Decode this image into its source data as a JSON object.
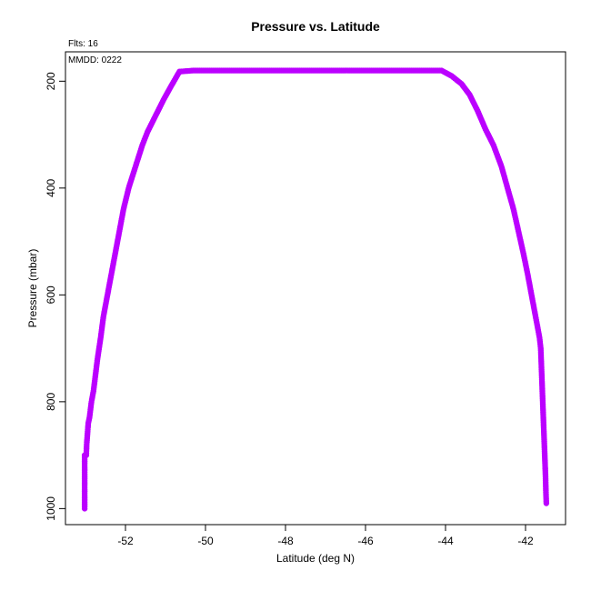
{
  "chart_data": {
    "type": "scatter",
    "title": "Pressure vs. Latitude",
    "xlabel": "Latitude (deg N)",
    "ylabel": "Pressure (mbar)",
    "xlim": [
      -53.5,
      -41.0
    ],
    "ylim": [
      1030,
      145
    ],
    "y_inverted": true,
    "grid": false,
    "x_ticks": [
      -52,
      -50,
      -48,
      -46,
      -44,
      -42
    ],
    "x_tick_labels": [
      "-52",
      "-50",
      "-48",
      "-46",
      "-44",
      "-42"
    ],
    "y_ticks": [
      200,
      400,
      600,
      800,
      1000
    ],
    "y_tick_labels": [
      "200",
      "400",
      "600",
      "800",
      "1000"
    ],
    "annotations": [
      "Flts: 16",
      "MMDD: 0222"
    ],
    "marker_color": "#bb00ff",
    "series": [
      {
        "points": [
          [
            -53.02,
            1000
          ],
          [
            -53.02,
            980
          ],
          [
            -53.02,
            960
          ],
          [
            -53.02,
            940
          ],
          [
            -53.02,
            920
          ],
          [
            -53.02,
            900
          ],
          [
            -52.98,
            900
          ],
          [
            -52.97,
            880
          ],
          [
            -52.95,
            860
          ],
          [
            -52.93,
            840
          ],
          [
            -52.9,
            830
          ],
          [
            -52.85,
            800
          ],
          [
            -52.8,
            780
          ],
          [
            -52.75,
            750
          ],
          [
            -52.7,
            720
          ],
          [
            -52.62,
            680
          ],
          [
            -52.55,
            640
          ],
          [
            -52.45,
            600
          ],
          [
            -52.35,
            560
          ],
          [
            -52.25,
            520
          ],
          [
            -52.15,
            480
          ],
          [
            -52.05,
            440
          ],
          [
            -51.92,
            400
          ],
          [
            -51.75,
            360
          ],
          [
            -51.58,
            320
          ],
          [
            -51.45,
            295
          ],
          [
            -51.25,
            265
          ],
          [
            -51.05,
            235
          ],
          [
            -50.85,
            208
          ],
          [
            -50.65,
            182
          ],
          [
            -50.3,
            180
          ],
          [
            -49.5,
            180
          ],
          [
            -48.5,
            180
          ],
          [
            -47.5,
            180
          ],
          [
            -46.5,
            180
          ],
          [
            -45.5,
            180
          ],
          [
            -44.5,
            180
          ],
          [
            -44.1,
            180
          ],
          [
            -43.85,
            190
          ],
          [
            -43.6,
            205
          ],
          [
            -43.4,
            225
          ],
          [
            -43.2,
            255
          ],
          [
            -43.0,
            290
          ],
          [
            -42.8,
            320
          ],
          [
            -42.6,
            360
          ],
          [
            -42.45,
            400
          ],
          [
            -42.3,
            440
          ],
          [
            -42.18,
            480
          ],
          [
            -42.06,
            520
          ],
          [
            -41.95,
            560
          ],
          [
            -41.85,
            600
          ],
          [
            -41.75,
            640
          ],
          [
            -41.65,
            680
          ],
          [
            -41.62,
            700
          ],
          [
            -41.6,
            740
          ],
          [
            -41.58,
            780
          ],
          [
            -41.56,
            820
          ],
          [
            -41.54,
            860
          ],
          [
            -41.52,
            900
          ],
          [
            -41.5,
            940
          ],
          [
            -41.49,
            970
          ],
          [
            -41.48,
            990
          ]
        ]
      }
    ]
  }
}
